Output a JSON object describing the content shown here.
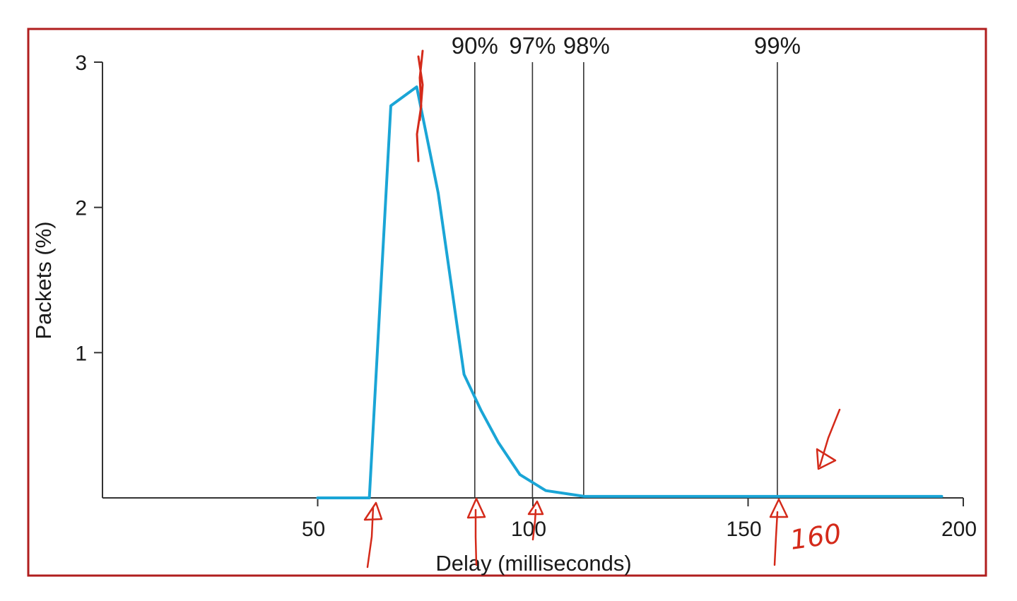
{
  "chart_data": {
    "type": "line",
    "title": "",
    "xlabel": "Delay (milliseconds)",
    "ylabel": "Packets (%)",
    "xlim": [
      0,
      200
    ],
    "ylim": [
      0,
      3
    ],
    "x_ticks": [
      {
        "value": 50,
        "label": "50"
      },
      {
        "value": 100,
        "label": "100"
      },
      {
        "value": 150,
        "label": "150"
      },
      {
        "value": 200,
        "label": "200"
      }
    ],
    "y_ticks": [
      {
        "value": 1,
        "label": "1"
      },
      {
        "value": 2,
        "label": "2"
      },
      {
        "value": 3,
        "label": "3"
      }
    ],
    "grid": false,
    "legend": "none",
    "series": [
      {
        "color": "#1aa5d6",
        "x": [
          50,
          62,
          67,
          73,
          78,
          84,
          88,
          92,
          97,
          103,
          112,
          130,
          160,
          195
        ],
        "y": [
          0,
          0,
          2.7,
          2.83,
          2.1,
          0.85,
          0.6,
          0.38,
          0.16,
          0.05,
          0.01,
          0.01,
          0.01,
          0.01
        ]
      }
    ],
    "percentile_lines": [
      {
        "label": "90%",
        "x": 86.5
      },
      {
        "label": "97%",
        "x": 99.9
      },
      {
        "label": "98%",
        "x": 111.8
      },
      {
        "label": "99%",
        "x": 156.8
      }
    ]
  },
  "annotations": {
    "handwritten_note": "160",
    "ink_color": "#d42a1a"
  },
  "frame": {
    "border_color": "#b01e1e"
  }
}
